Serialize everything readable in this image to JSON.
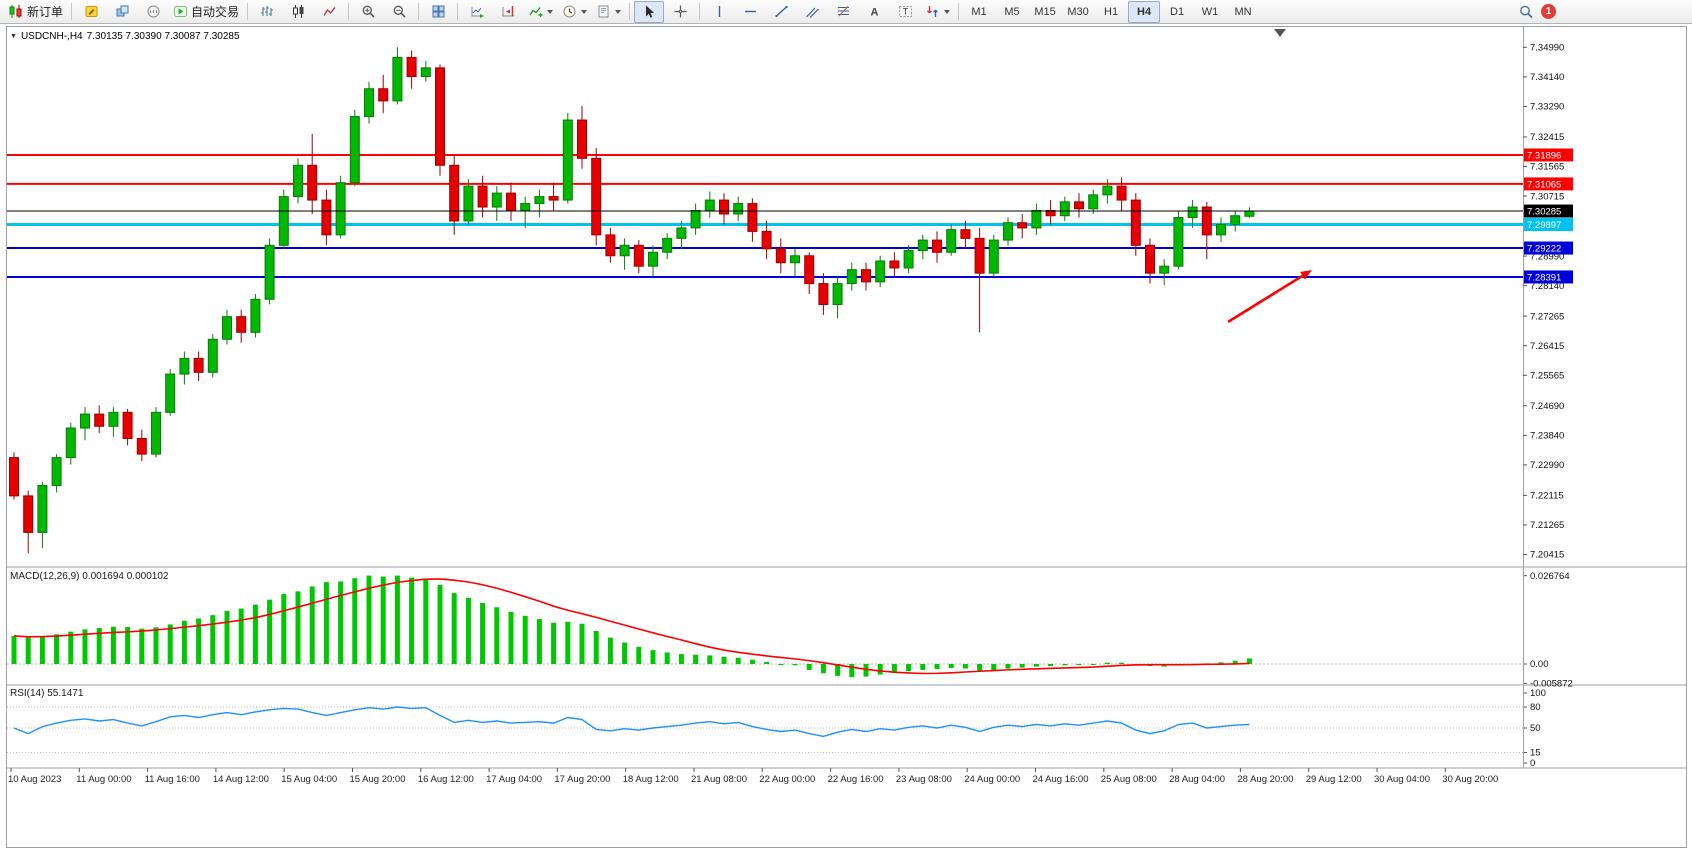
{
  "toolbar": {
    "new_order": "新订单",
    "autotrading": "自动交易",
    "timeframes": [
      "M1",
      "M5",
      "M15",
      "M30",
      "H1",
      "H4",
      "D1",
      "W1",
      "MN"
    ],
    "active_timeframe": "H4",
    "notification_count": "1"
  },
  "chart": {
    "collapse_icon": "▼",
    "symbol_period": "USDCNH-,H4",
    "ohlc": "7.30135 7.30390 7.30087 7.30285"
  },
  "indicators": {
    "macd_label": "MACD(12,26,9) 0.001694 0.000102",
    "rsi_label": "RSI(14) 55.1471"
  },
  "chart_data": {
    "type": "candlestick",
    "symbol": "USDCNH-",
    "timeframe": "H4",
    "title": "USDCNH-,H4",
    "x_labels": [
      "10 Aug 2023",
      "11 Aug 00:00",
      "11 Aug 16:00",
      "14 Aug 12:00",
      "15 Aug 04:00",
      "15 Aug 20:00",
      "16 Aug 12:00",
      "17 Aug 04:00",
      "17 Aug 20:00",
      "18 Aug 12:00",
      "21 Aug 08:00",
      "22 Aug 00:00",
      "22 Aug 16:00",
      "23 Aug 08:00",
      "24 Aug 00:00",
      "24 Aug 16:00",
      "25 Aug 08:00",
      "28 Aug 04:00",
      "28 Aug 20:00",
      "29 Aug 12:00",
      "30 Aug 04:00",
      "30 Aug 20:00"
    ],
    "price_range": [
      7.202,
      7.352
    ],
    "price_axis_ticks": [
      "7.34990",
      "7.34140",
      "7.33290",
      "7.32415",
      "7.31565",
      "7.30715",
      "7.28990",
      "7.28140",
      "7.27265",
      "7.26415",
      "7.25565",
      "7.24690",
      "7.23840",
      "7.22990",
      "7.22115",
      "7.21265",
      "7.20415"
    ],
    "price_lines": [
      {
        "label": "7.31896",
        "value": 7.31896,
        "color": "#ff0000",
        "width": 2,
        "name": "resistance-line-1",
        "current": false
      },
      {
        "label": "7.31065",
        "value": 7.31065,
        "color": "#ff0000",
        "width": 2,
        "name": "resistance-line-2",
        "current": false
      },
      {
        "label": "7.29897",
        "value": 7.29897,
        "color": "#00c2f0",
        "width": 3,
        "name": "support-line-cyan",
        "current": false
      },
      {
        "label": "7.29222",
        "value": 7.29222,
        "color": "#0000dc",
        "width": 2,
        "name": "support-line-blue-1",
        "current": false
      },
      {
        "label": "7.28391",
        "value": 7.28391,
        "color": "#0000dc",
        "width": 2,
        "name": "support-line-blue-2",
        "current": false
      },
      {
        "label": "7.30285",
        "value": 7.30285,
        "color": "#000000",
        "width": 1,
        "name": "current-price-line",
        "current": true
      }
    ],
    "candles": [
      [
        7.232,
        7.2335,
        7.22,
        7.221
      ],
      [
        7.221,
        7.2225,
        7.2045,
        7.2105
      ],
      [
        7.2105,
        7.225,
        7.206,
        7.224
      ],
      [
        7.224,
        7.233,
        7.222,
        7.232
      ],
      [
        7.232,
        7.242,
        7.23,
        7.2405
      ],
      [
        7.2405,
        7.2465,
        7.237,
        7.2445
      ],
      [
        7.2445,
        7.247,
        7.239,
        7.241
      ],
      [
        7.241,
        7.2465,
        7.238,
        7.245
      ],
      [
        7.245,
        7.246,
        7.2355,
        7.2375
      ],
      [
        7.2375,
        7.24,
        7.231,
        7.233
      ],
      [
        7.233,
        7.2465,
        7.232,
        7.245
      ],
      [
        7.245,
        7.2575,
        7.244,
        7.256
      ],
      [
        7.256,
        7.2625,
        7.253,
        7.2605
      ],
      [
        7.2605,
        7.2625,
        7.254,
        7.2565
      ],
      [
        7.2565,
        7.2675,
        7.255,
        7.266
      ],
      [
        7.266,
        7.2745,
        7.2645,
        7.2725
      ],
      [
        7.2725,
        7.2745,
        7.265,
        7.268
      ],
      [
        7.268,
        7.279,
        7.2665,
        7.2775
      ],
      [
        7.2775,
        7.295,
        7.276,
        7.293
      ],
      [
        7.293,
        7.309,
        7.292,
        7.307
      ],
      [
        7.307,
        7.318,
        7.305,
        7.316
      ],
      [
        7.316,
        7.325,
        7.302,
        7.306
      ],
      [
        7.306,
        7.309,
        7.293,
        7.296
      ],
      [
        7.296,
        7.313,
        7.295,
        7.311
      ],
      [
        7.311,
        7.332,
        7.31,
        7.33
      ],
      [
        7.33,
        7.34,
        7.328,
        7.338
      ],
      [
        7.338,
        7.342,
        7.331,
        7.3345
      ],
      [
        7.3345,
        7.3499,
        7.3335,
        7.347
      ],
      [
        7.347,
        7.349,
        7.338,
        7.3415
      ],
      [
        7.3415,
        7.346,
        7.34,
        7.344
      ],
      [
        7.344,
        7.345,
        7.313,
        7.316
      ],
      [
        7.316,
        7.319,
        7.296,
        7.3
      ],
      [
        7.3,
        7.312,
        7.299,
        7.31
      ],
      [
        7.31,
        7.313,
        7.301,
        7.304
      ],
      [
        7.304,
        7.31,
        7.3,
        7.308
      ],
      [
        7.308,
        7.311,
        7.3,
        7.303
      ],
      [
        7.303,
        7.307,
        7.298,
        7.305
      ],
      [
        7.305,
        7.309,
        7.301,
        7.307
      ],
      [
        7.307,
        7.311,
        7.303,
        7.306
      ],
      [
        7.306,
        7.331,
        7.305,
        7.329
      ],
      [
        7.329,
        7.333,
        7.315,
        7.318
      ],
      [
        7.318,
        7.321,
        7.293,
        7.296
      ],
      [
        7.296,
        7.298,
        7.288,
        7.29
      ],
      [
        7.29,
        7.295,
        7.286,
        7.293
      ],
      [
        7.293,
        7.2945,
        7.285,
        7.287
      ],
      [
        7.287,
        7.293,
        7.284,
        7.291
      ],
      [
        7.291,
        7.2965,
        7.289,
        7.295
      ],
      [
        7.295,
        7.3,
        7.292,
        7.298
      ],
      [
        7.298,
        7.305,
        7.296,
        7.303
      ],
      [
        7.303,
        7.3085,
        7.301,
        7.306
      ],
      [
        7.306,
        7.308,
        7.299,
        7.302
      ],
      [
        7.302,
        7.307,
        7.3,
        7.305
      ],
      [
        7.305,
        7.3065,
        7.294,
        7.297
      ],
      [
        7.297,
        7.3,
        7.289,
        7.292
      ],
      [
        7.292,
        7.295,
        7.285,
        7.288
      ],
      [
        7.288,
        7.292,
        7.284,
        7.29
      ],
      [
        7.29,
        7.291,
        7.279,
        7.282
      ],
      [
        7.282,
        7.285,
        7.273,
        7.276
      ],
      [
        7.276,
        7.284,
        7.272,
        7.282
      ],
      [
        7.282,
        7.288,
        7.28,
        7.286
      ],
      [
        7.286,
        7.288,
        7.28,
        7.2825
      ],
      [
        7.2825,
        7.29,
        7.281,
        7.2885
      ],
      [
        7.2885,
        7.291,
        7.284,
        7.2865
      ],
      [
        7.2865,
        7.293,
        7.285,
        7.2915
      ],
      [
        7.2915,
        7.296,
        7.289,
        7.2945
      ],
      [
        7.2945,
        7.297,
        7.288,
        7.291
      ],
      [
        7.291,
        7.299,
        7.29,
        7.2975
      ],
      [
        7.2975,
        7.3,
        7.292,
        7.295
      ],
      [
        7.295,
        7.298,
        7.268,
        7.285
      ],
      [
        7.285,
        7.296,
        7.284,
        7.2945
      ],
      [
        7.2945,
        7.301,
        7.293,
        7.2995
      ],
      [
        7.2995,
        7.302,
        7.295,
        7.298
      ],
      [
        7.298,
        7.305,
        7.296,
        7.303
      ],
      [
        7.303,
        7.306,
        7.299,
        7.3015
      ],
      [
        7.3015,
        7.307,
        7.3,
        7.3055
      ],
      [
        7.3055,
        7.308,
        7.301,
        7.3035
      ],
      [
        7.3035,
        7.309,
        7.302,
        7.3075
      ],
      [
        7.3075,
        7.312,
        7.305,
        7.31
      ],
      [
        7.31,
        7.3125,
        7.303,
        7.306
      ],
      [
        7.306,
        7.308,
        7.29,
        7.293
      ],
      [
        7.293,
        7.295,
        7.282,
        7.285
      ],
      [
        7.285,
        7.289,
        7.2815,
        7.287
      ],
      [
        7.287,
        7.303,
        7.286,
        7.301
      ],
      [
        7.301,
        7.306,
        7.298,
        7.304
      ],
      [
        7.304,
        7.3055,
        7.289,
        7.296
      ],
      [
        7.296,
        7.301,
        7.294,
        7.299
      ],
      [
        7.299,
        7.303,
        7.297,
        7.3015
      ],
      [
        7.30135,
        7.3039,
        7.30087,
        7.30285
      ]
    ],
    "macd": {
      "params": "12,26,9",
      "current": "0.001694",
      "signal_current": "0.000102",
      "signal_period": 9,
      "axis_ticks": [
        {
          "label": "0.026764",
          "value": 0.026764
        },
        {
          "label": "0.00",
          "value": 0
        },
        {
          "label": "-0.005872",
          "value": -0.005872
        }
      ],
      "histogram": [
        0.0085,
        0.008,
        0.0084,
        0.009,
        0.0098,
        0.0105,
        0.0109,
        0.0113,
        0.0112,
        0.0107,
        0.0111,
        0.012,
        0.0131,
        0.0138,
        0.0148,
        0.0161,
        0.0168,
        0.018,
        0.0195,
        0.0212,
        0.022,
        0.0235,
        0.0248,
        0.025,
        0.026,
        0.0268,
        0.0265,
        0.0268,
        0.0262,
        0.0258,
        0.024,
        0.0215,
        0.02,
        0.0185,
        0.0172,
        0.0158,
        0.0146,
        0.0136,
        0.0125,
        0.0128,
        0.0122,
        0.01,
        0.008,
        0.0065,
        0.0052,
        0.0042,
        0.0035,
        0.003,
        0.0028,
        0.0026,
        0.0022,
        0.0019,
        0.0013,
        0.0006,
        0.0,
        -0.0004,
        -0.0018,
        -0.0028,
        -0.0036,
        -0.004,
        -0.0038,
        -0.0032,
        -0.0027,
        -0.0022,
        -0.0018,
        -0.0015,
        -0.0012,
        -0.0014,
        -0.002,
        -0.0018,
        -0.0014,
        -0.0011,
        -0.0008,
        -0.0006,
        -0.0004,
        -0.0003,
        0.0,
        0.0004,
        0.0004,
        -0.0001,
        -0.0006,
        -0.0008,
        -0.0004,
        0.0,
        0.0002,
        0.0005,
        0.001,
        0.0017
      ]
    },
    "rsi": {
      "period": 14,
      "current": "55.1471",
      "axis_labels": [
        "100",
        "80",
        "50",
        "15",
        "0"
      ],
      "levels": [
        80,
        50,
        15
      ],
      "values": [
        50,
        42,
        52,
        57,
        61,
        63,
        60,
        62,
        57,
        53,
        59,
        66,
        68,
        65,
        69,
        72,
        69,
        73,
        76,
        78,
        77,
        72,
        68,
        72,
        76,
        79,
        77,
        80,
        78,
        79,
        68,
        58,
        61,
        58,
        60,
        57,
        58,
        59,
        57,
        65,
        62,
        48,
        46,
        49,
        47,
        50,
        52,
        54,
        57,
        59,
        56,
        58,
        52,
        48,
        45,
        47,
        42,
        38,
        44,
        48,
        45,
        49,
        47,
        51,
        53,
        50,
        54,
        51,
        45,
        51,
        54,
        52,
        55,
        53,
        56,
        54,
        57,
        60,
        57,
        47,
        42,
        46,
        55,
        57,
        50,
        52,
        54,
        55.15
      ]
    },
    "annotations": [
      {
        "type": "arrow",
        "color": "#ff0000",
        "from_index": 85.5,
        "from_price": 7.271,
        "to_index": 91.4,
        "to_price": 7.2859
      }
    ],
    "colors": {
      "bull": "#00b800",
      "bull_border": "#0a7a0a",
      "bear": "#e60000",
      "bear_border": "#9e0000",
      "macd_hist": "#00c800",
      "macd_signal": "#ff0000",
      "rsi_line": "#1e90ff"
    },
    "legend_position": "none",
    "grid": false
  }
}
